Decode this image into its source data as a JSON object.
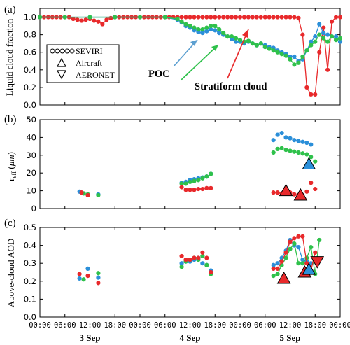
{
  "chart_data": [
    {
      "type": "scatter",
      "panel_label": "(a)",
      "ylabel": "Liquid cloud fraction",
      "ylim": [
        0,
        1.1
      ],
      "yticks": [
        0.0,
        0.2,
        0.4,
        0.6,
        0.8,
        1.0
      ],
      "x_unit": "hours since 3 Sep 00:00",
      "legend": {
        "position": "left",
        "entries": [
          "SEVIRI",
          "Aircraft",
          "AERONET"
        ]
      },
      "annotations": [
        {
          "text": "POC",
          "series": "blue"
        },
        {
          "text": "Stratiform cloud",
          "series": "red"
        }
      ],
      "series": [
        {
          "color": "red",
          "style": "line-marker",
          "x": [
            0,
            1,
            2,
            3,
            4,
            5,
            6,
            7,
            8,
            9,
            10,
            11,
            12,
            13,
            14,
            15,
            16,
            17,
            18,
            19,
            20,
            21,
            22,
            23,
            24,
            25,
            26,
            27,
            28,
            29,
            30,
            31,
            32,
            33,
            34,
            35,
            36,
            37,
            38,
            39,
            40,
            41,
            42,
            43,
            44,
            45,
            46,
            47,
            48,
            49,
            50,
            51,
            52,
            53,
            54,
            55,
            56,
            57,
            58,
            59,
            60,
            61,
            62,
            63,
            64,
            65,
            66,
            67,
            68,
            69,
            70,
            71,
            72
          ],
          "y": [
            1.0,
            1.0,
            1.0,
            1.0,
            1.0,
            1.0,
            1.0,
            1.0,
            0.98,
            0.97,
            0.96,
            0.97,
            0.98,
            0.96,
            0.95,
            0.92,
            0.97,
            0.99,
            1.0,
            1.0,
            1.0,
            1.0,
            1.0,
            1.0,
            1.0,
            1.0,
            1.0,
            1.0,
            1.0,
            1.0,
            1.0,
            1.0,
            1.0,
            1.0,
            1.0,
            1.0,
            1.0,
            1.0,
            1.0,
            1.0,
            1.0,
            1.0,
            1.0,
            1.0,
            1.0,
            1.0,
            1.0,
            1.0,
            1.0,
            1.0,
            1.0,
            1.0,
            1.0,
            1.0,
            1.0,
            1.0,
            1.0,
            1.0,
            1.0,
            1.0,
            1.0,
            1.0,
            0.99,
            0.8,
            0.2,
            0.12,
            0.12,
            0.6,
            0.88,
            0.4,
            0.95,
            1.0,
            1.0
          ]
        },
        {
          "color": "blue",
          "style": "line-marker",
          "x": [
            0,
            6,
            12,
            18,
            24,
            30,
            33,
            34,
            35,
            36,
            37,
            38,
            39,
            40,
            41,
            42,
            43,
            44,
            45,
            46,
            47,
            48,
            49,
            50,
            51,
            52,
            53,
            54,
            55,
            56,
            57,
            58,
            59,
            60,
            61,
            62,
            63,
            64,
            65,
            66,
            67,
            68,
            69,
            70,
            71,
            72
          ],
          "y": [
            1.0,
            1.0,
            1.0,
            1.0,
            1.0,
            1.0,
            0.97,
            0.94,
            0.9,
            0.88,
            0.85,
            0.83,
            0.82,
            0.84,
            0.86,
            0.85,
            0.82,
            0.8,
            0.78,
            0.75,
            0.72,
            0.72,
            0.7,
            0.72,
            0.7,
            0.68,
            0.7,
            0.68,
            0.66,
            0.65,
            0.62,
            0.6,
            0.58,
            0.55,
            0.55,
            0.5,
            0.52,
            0.62,
            0.72,
            0.78,
            0.92,
            0.82,
            0.8,
            0.78,
            0.78,
            0.72
          ]
        },
        {
          "color": "green",
          "style": "line-marker",
          "x": [
            0,
            6,
            12,
            18,
            24,
            30,
            33,
            34,
            35,
            36,
            37,
            38,
            39,
            40,
            41,
            42,
            43,
            44,
            45,
            46,
            47,
            48,
            49,
            50,
            51,
            52,
            53,
            54,
            55,
            56,
            57,
            58,
            59,
            60,
            61,
            62,
            63,
            64,
            65,
            66,
            67,
            68,
            69,
            70,
            71,
            72
          ],
          "y": [
            1.0,
            1.0,
            1.0,
            1.0,
            1.0,
            1.0,
            0.98,
            0.95,
            0.92,
            0.9,
            0.88,
            0.86,
            0.86,
            0.88,
            0.9,
            0.9,
            0.86,
            0.82,
            0.78,
            0.78,
            0.76,
            0.74,
            0.72,
            0.73,
            0.7,
            0.68,
            0.7,
            0.66,
            0.64,
            0.62,
            0.6,
            0.58,
            0.56,
            0.52,
            0.46,
            0.48,
            0.55,
            0.62,
            0.68,
            0.72,
            0.8,
            0.76,
            0.72,
            0.78,
            0.74,
            0.76
          ]
        }
      ]
    },
    {
      "type": "scatter",
      "panel_label": "(b)",
      "ylabel": "r_eff (μm)",
      "ylim": [
        0,
        50
      ],
      "yticks": [
        0,
        10,
        20,
        30,
        40,
        50
      ],
      "series": [
        {
          "color": "blue",
          "style": "marker",
          "x": [
            9.5,
            14
          ],
          "y": [
            9.5,
            8
          ]
        },
        {
          "color": "green",
          "style": "marker",
          "x": [
            10.5,
            11.5,
            14
          ],
          "y": [
            8.5,
            8,
            7.5
          ]
        },
        {
          "color": "red",
          "style": "marker",
          "x": [
            10,
            11.5
          ],
          "y": [
            9,
            7.5
          ]
        },
        {
          "color": "blue",
          "style": "marker",
          "x": [
            34,
            35,
            36,
            37,
            38,
            39,
            40,
            41
          ],
          "y": [
            14.5,
            15,
            16,
            16.5,
            17,
            17.5,
            18,
            19.5
          ]
        },
        {
          "color": "green",
          "style": "marker",
          "x": [
            34,
            35,
            36,
            37,
            38,
            39,
            40,
            41
          ],
          "y": [
            14,
            14,
            15,
            15.5,
            16,
            17,
            18,
            19.5
          ]
        },
        {
          "color": "red",
          "style": "marker",
          "x": [
            34,
            35,
            36,
            37,
            38,
            39,
            40,
            41
          ],
          "y": [
            12,
            10.5,
            10.5,
            10.5,
            11,
            11,
            11.5,
            11.5
          ]
        },
        {
          "color": "blue",
          "style": "marker",
          "x": [
            56,
            57,
            58,
            59,
            60,
            61,
            62,
            63,
            64,
            65
          ],
          "y": [
            38.5,
            41.5,
            42.5,
            40,
            39.5,
            38.5,
            38,
            37.5,
            37,
            36
          ]
        },
        {
          "color": "green",
          "style": "marker",
          "x": [
            56,
            57,
            58,
            59,
            60,
            61,
            62,
            63,
            64,
            65,
            66
          ],
          "y": [
            31.5,
            33.5,
            34,
            33,
            32.5,
            32,
            31.5,
            31,
            30.5,
            29,
            26.5
          ]
        },
        {
          "color": "red",
          "style": "marker",
          "x": [
            56,
            57,
            58,
            59,
            60,
            61,
            62,
            63,
            64,
            65,
            66
          ],
          "y": [
            9,
            9,
            8.5,
            8.5,
            9,
            8,
            7.5,
            7.5,
            9.5,
            14.5,
            11
          ]
        },
        {
          "color": "red",
          "style": "triangle-up",
          "name_ref": "Aircraft",
          "x": [
            59,
            62.5
          ],
          "y": [
            10,
            7.5
          ]
        },
        {
          "color": "blue",
          "style": "triangle-up",
          "name_ref": "Aircraft",
          "x": [
            64.5
          ],
          "y": [
            25
          ]
        }
      ]
    },
    {
      "type": "scatter",
      "panel_label": "(c)",
      "ylabel": "Above-cloud AOD",
      "ylim": [
        0,
        0.5
      ],
      "yticks": [
        0.0,
        0.1,
        0.2,
        0.3,
        0.4,
        0.5
      ],
      "xticks": [
        "00:00",
        "06:00",
        "12:00",
        "18:00",
        "00:00",
        "06:00",
        "12:00",
        "18:00",
        "00:00",
        "06:00",
        "12:00",
        "18:00",
        "00:00"
      ],
      "day_labels": [
        "3 Sep",
        "4 Sep",
        "5 Sep"
      ],
      "series": [
        {
          "color": "blue",
          "style": "marker",
          "x": [
            9.5,
            11.5,
            14
          ],
          "y": [
            0.215,
            0.27,
            0.22
          ]
        },
        {
          "color": "green",
          "style": "marker",
          "x": [
            10.5,
            14
          ],
          "y": [
            0.21,
            0.245
          ]
        },
        {
          "color": "red",
          "style": "marker",
          "x": [
            9.5,
            11.5,
            14
          ],
          "y": [
            0.24,
            0.23,
            0.19
          ]
        },
        {
          "color": "blue",
          "style": "marker",
          "x": [
            34,
            35,
            36,
            37,
            38,
            39,
            40,
            41
          ],
          "y": [
            0.3,
            0.31,
            0.31,
            0.32,
            0.33,
            0.3,
            0.29,
            0.26
          ]
        },
        {
          "color": "green",
          "style": "marker",
          "x": [
            34,
            35,
            36,
            37,
            38,
            39,
            40,
            41
          ],
          "y": [
            0.28,
            0.31,
            0.32,
            0.33,
            0.32,
            0.34,
            0.29,
            0.24
          ]
        },
        {
          "color": "red",
          "style": "marker",
          "x": [
            34,
            35,
            36,
            37,
            38,
            39,
            40,
            41
          ],
          "y": [
            0.34,
            0.32,
            0.32,
            0.33,
            0.33,
            0.36,
            0.33,
            0.25
          ]
        },
        {
          "color": "blue",
          "style": "line-marker",
          "x": [
            56,
            57,
            58,
            59,
            60,
            61,
            62,
            63,
            64,
            65
          ],
          "y": [
            0.29,
            0.3,
            0.33,
            0.37,
            0.43,
            0.4,
            0.39,
            0.32,
            0.31,
            0.3
          ]
        },
        {
          "color": "green",
          "style": "line-marker",
          "x": [
            56,
            57,
            58,
            59,
            60,
            61,
            62,
            63,
            64,
            65,
            66,
            67
          ],
          "y": [
            0.23,
            0.24,
            0.29,
            0.33,
            0.38,
            0.41,
            0.3,
            0.3,
            0.33,
            0.39,
            0.24,
            0.43
          ]
        },
        {
          "color": "red",
          "style": "line-marker",
          "x": [
            56,
            57,
            58,
            59,
            60,
            61,
            62,
            63,
            64,
            65,
            66
          ],
          "y": [
            0.27,
            0.27,
            0.31,
            0.36,
            0.42,
            0.44,
            0.45,
            0.45,
            0.3,
            0.26,
            0.36
          ]
        },
        {
          "color": "red",
          "style": "triangle-up",
          "name_ref": "Aircraft",
          "x": [
            58.5,
            63.5
          ],
          "y": [
            0.215,
            0.25
          ]
        },
        {
          "color": "blue",
          "style": "triangle-up",
          "name_ref": "Aircraft",
          "x": [
            64.5
          ],
          "y": [
            0.265
          ]
        },
        {
          "color": "red",
          "style": "triangle-down",
          "name_ref": "AERONET",
          "x": [
            66.5
          ],
          "y": [
            0.31
          ]
        }
      ]
    }
  ],
  "colors": {
    "red": "#e8292b",
    "blue": "#2b8fd9",
    "green": "#2fc14b",
    "axis": "#000000"
  }
}
